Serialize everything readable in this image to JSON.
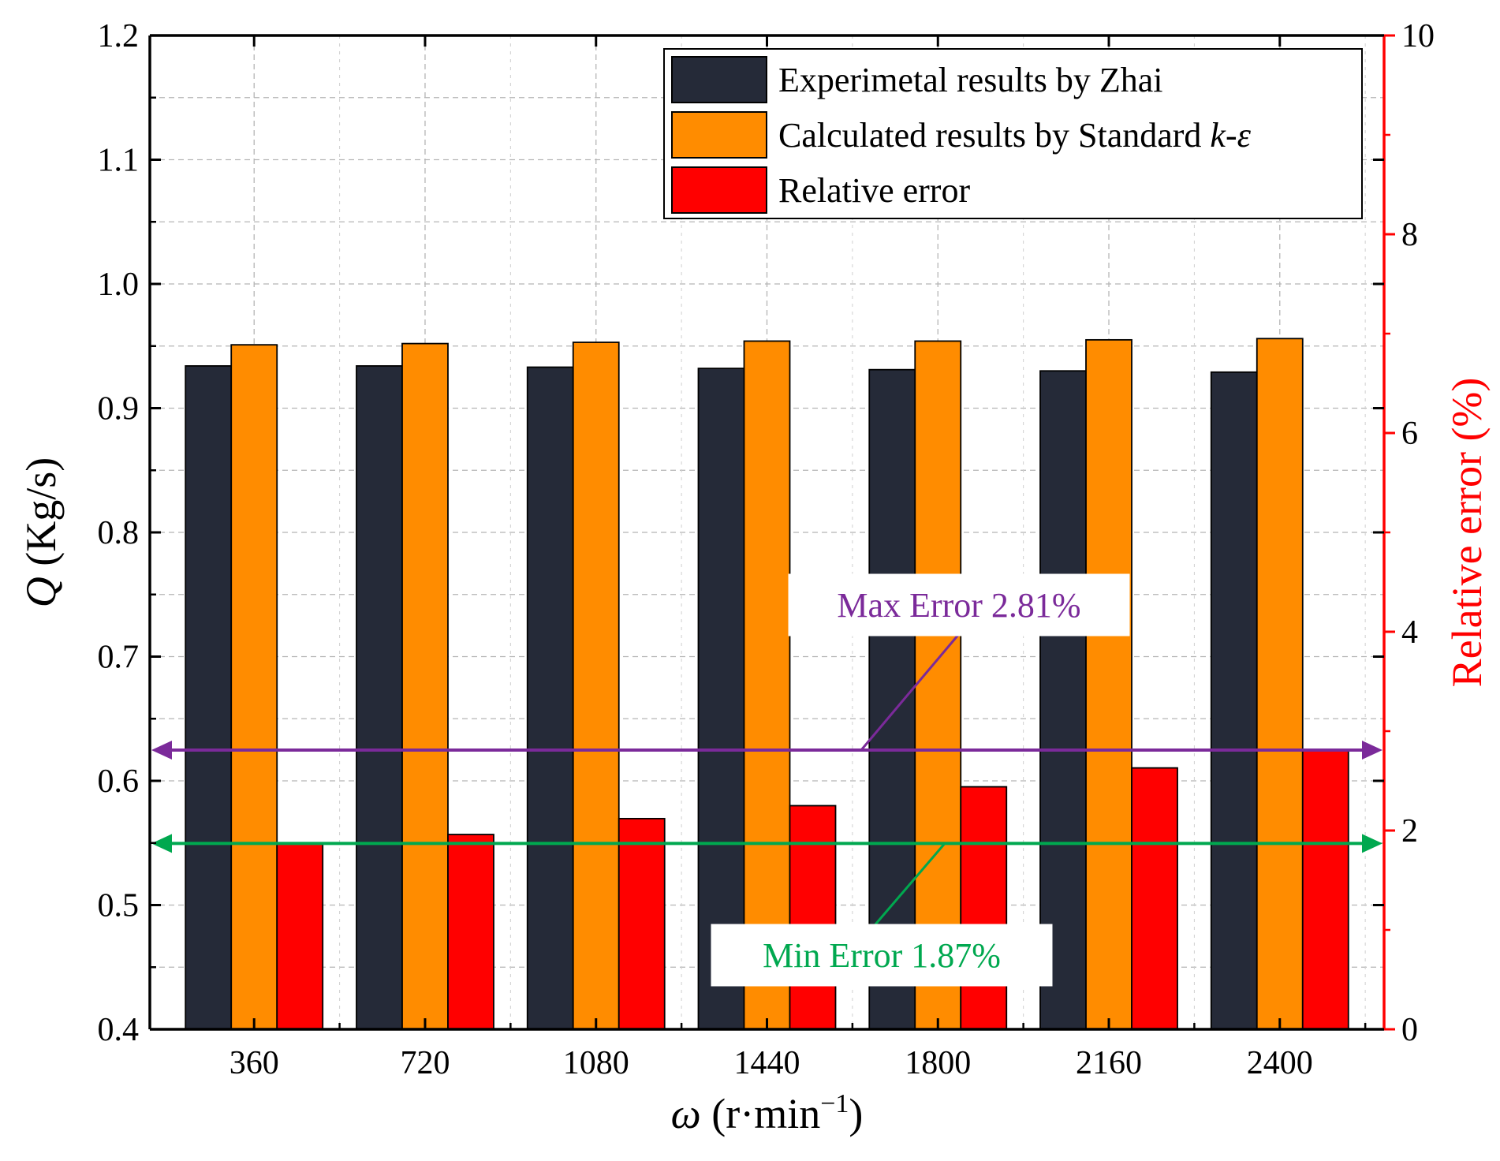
{
  "chart_data": {
    "type": "bar",
    "categories": [
      "360",
      "720",
      "1080",
      "1440",
      "1800",
      "2160",
      "2400"
    ],
    "series": [
      {
        "name": "Experimetal results by Zhai",
        "axis": "left",
        "color": "#252a38",
        "values": [
          0.934,
          0.934,
          0.933,
          0.932,
          0.931,
          0.93,
          0.929
        ]
      },
      {
        "name": "Calculated results by Standard ",
        "name_italic": "k-ε",
        "axis": "left",
        "color": "#ff8c00",
        "values": [
          0.951,
          0.952,
          0.953,
          0.954,
          0.954,
          0.955,
          0.956
        ]
      },
      {
        "name": "Relative error",
        "axis": "right",
        "color": "#ff0000",
        "values": [
          1.87,
          1.96,
          2.12,
          2.25,
          2.44,
          2.63,
          2.81
        ]
      }
    ],
    "x_axis": {
      "label_symbol": "ω",
      "label_units": " (r·min",
      "label_exp": "−1",
      "label_close": ")"
    },
    "y_left": {
      "label_symbol": "Q",
      "label_units": " (Kg/s)",
      "ylim": [
        0.4,
        1.2
      ],
      "ticks": [
        "0.4",
        "0.5",
        "0.6",
        "0.7",
        "0.8",
        "0.9",
        "1.0",
        "1.1",
        "1.2"
      ]
    },
    "y_right": {
      "label": "Relative error (%)",
      "ylim": [
        0,
        10
      ],
      "ticks": [
        "0",
        "2",
        "4",
        "6",
        "8",
        "10"
      ],
      "color": "#ff0000"
    },
    "grid": true,
    "legend_position": "top-right",
    "annotations": [
      {
        "text": "Max Error 2.81%",
        "color": "#7b2a9a",
        "value": 2.81
      },
      {
        "text": "Min Error 1.87%",
        "color": "#00a84f",
        "value": 1.87
      }
    ]
  }
}
